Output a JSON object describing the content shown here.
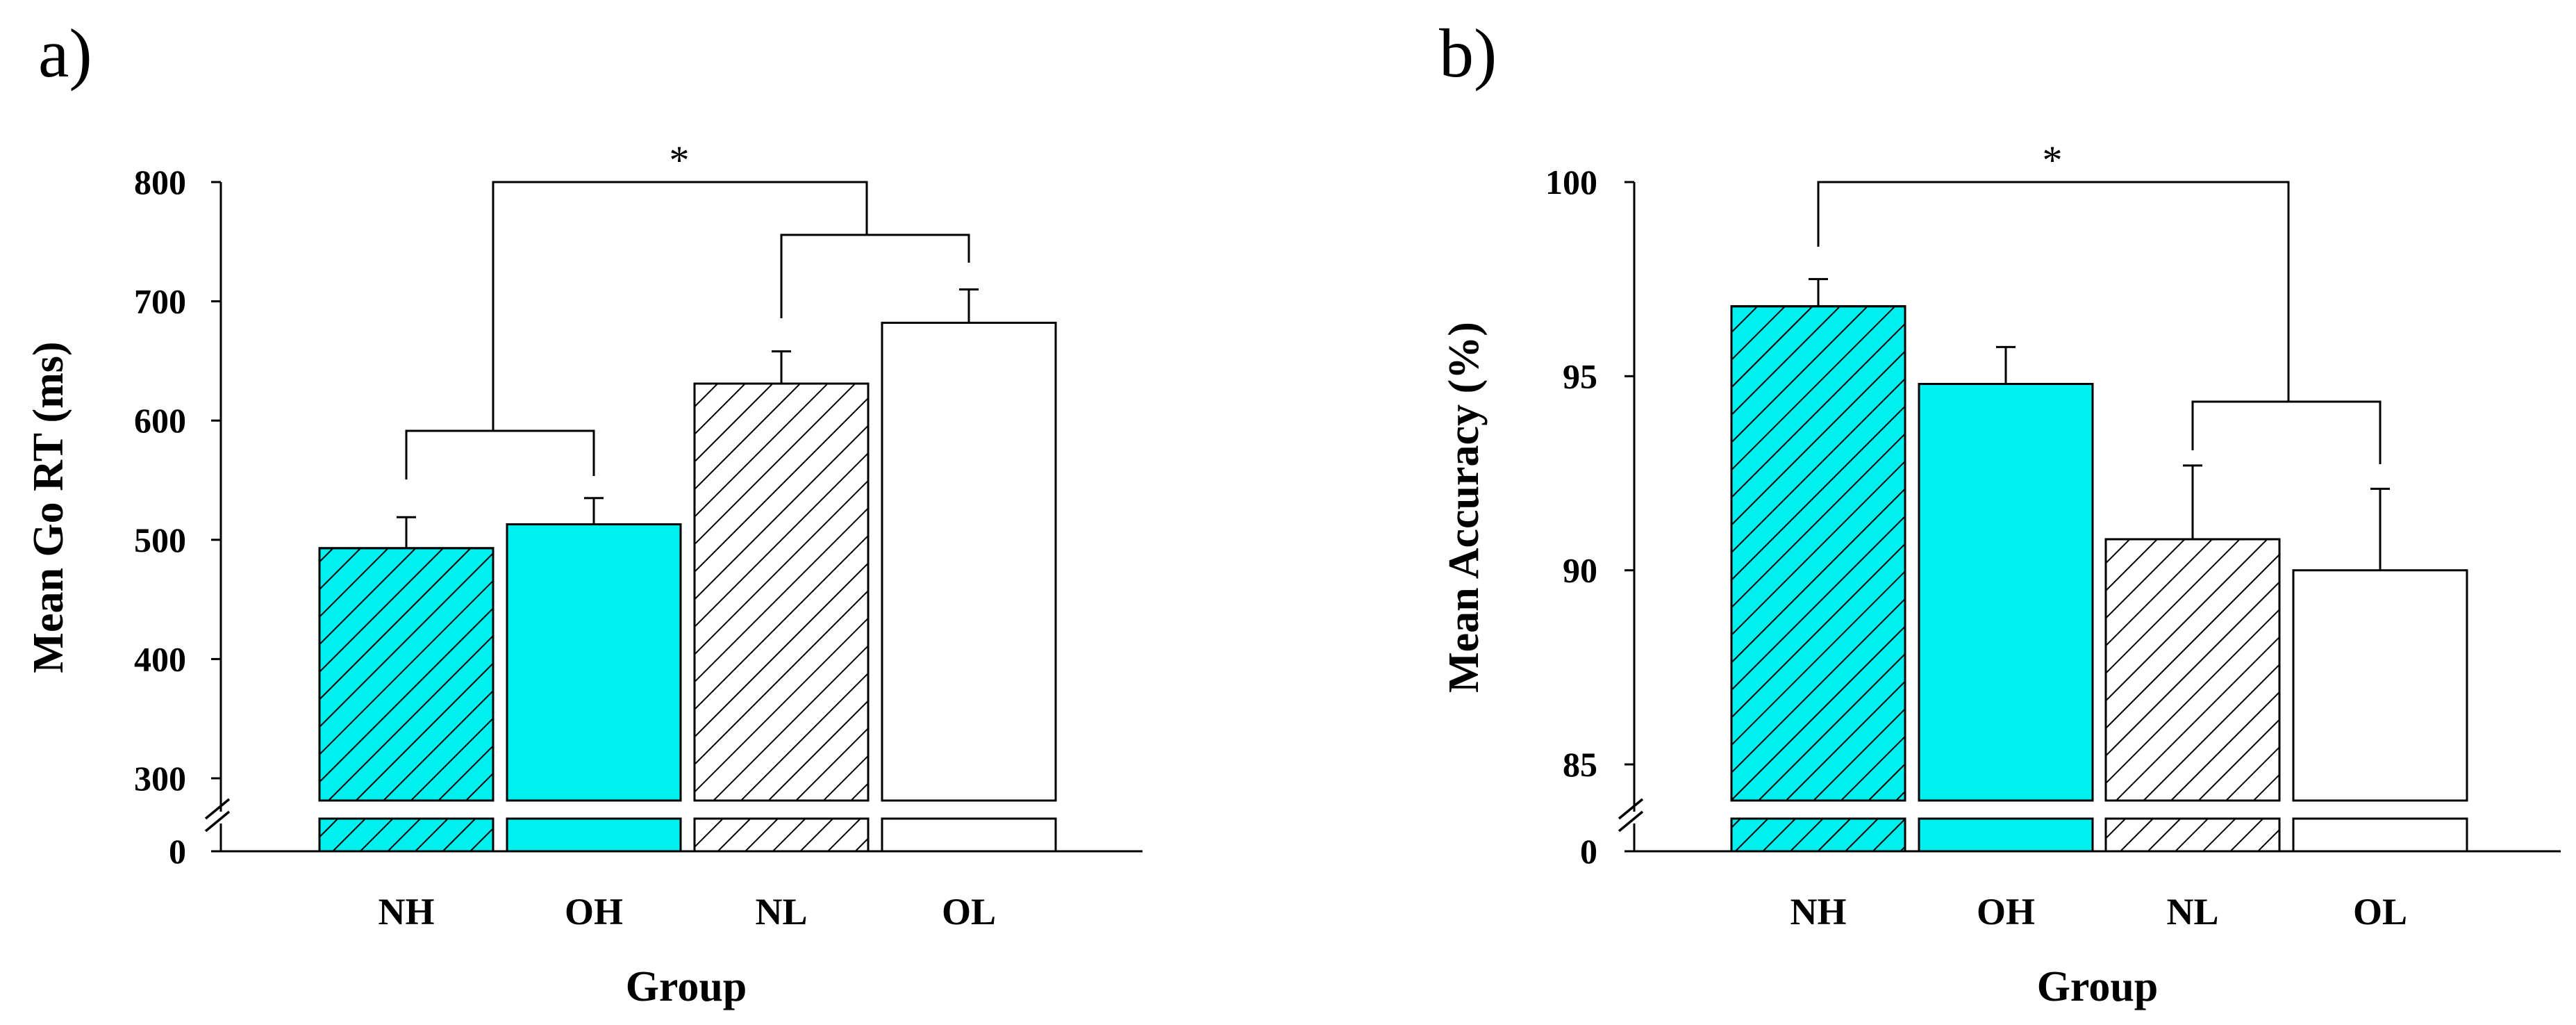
{
  "chart_data": [
    {
      "type": "bar",
      "panel_label": "a)",
      "ylabel": "Mean Go RT (ms)",
      "xlabel": "Group",
      "categories": [
        "NH",
        "OH",
        "NL",
        "OL"
      ],
      "values": [
        493,
        513,
        631,
        682
      ],
      "errors": [
        26,
        22,
        27,
        28
      ],
      "bar_styles": [
        {
          "fill": "#00f0f0",
          "hatch": true
        },
        {
          "fill": "#00f0f0",
          "hatch": false
        },
        {
          "fill": "#ffffff",
          "hatch": true
        },
        {
          "fill": "#ffffff",
          "hatch": false
        }
      ],
      "yticks": [
        300,
        400,
        500,
        600,
        700,
        800
      ],
      "ytick_labels": [
        "300",
        "400",
        "500",
        "600",
        "700",
        "800"
      ],
      "ylim": [
        280,
        800
      ],
      "axis_break": {
        "below_label": "0",
        "below_value": 0
      },
      "significance": [
        {
          "groups": [
            [
              0,
              1
            ],
            [
              2,
              3
            ]
          ],
          "label": "*"
        }
      ]
    },
    {
      "type": "bar",
      "panel_label": "b)",
      "ylabel": "Mean Accuracy (%)",
      "xlabel": "Group",
      "categories": [
        "NH",
        "OH",
        "NL",
        "OL"
      ],
      "values": [
        96.8,
        94.8,
        90.8,
        90.0
      ],
      "errors": [
        0.7,
        0.95,
        1.9,
        2.1
      ],
      "bar_styles": [
        {
          "fill": "#00f0f0",
          "hatch": true
        },
        {
          "fill": "#00f0f0",
          "hatch": false
        },
        {
          "fill": "#ffffff",
          "hatch": true
        },
        {
          "fill": "#ffffff",
          "hatch": false
        }
      ],
      "yticks": [
        85,
        90,
        95,
        100
      ],
      "ytick_labels": [
        "85",
        "90",
        "95",
        "100"
      ],
      "ylim": [
        84,
        100
      ],
      "axis_break": {
        "below_label": "0",
        "below_value": 0
      },
      "significance": [
        {
          "groups": [
            [
              0
            ],
            [
              2,
              3
            ]
          ],
          "label": "*"
        }
      ]
    }
  ]
}
